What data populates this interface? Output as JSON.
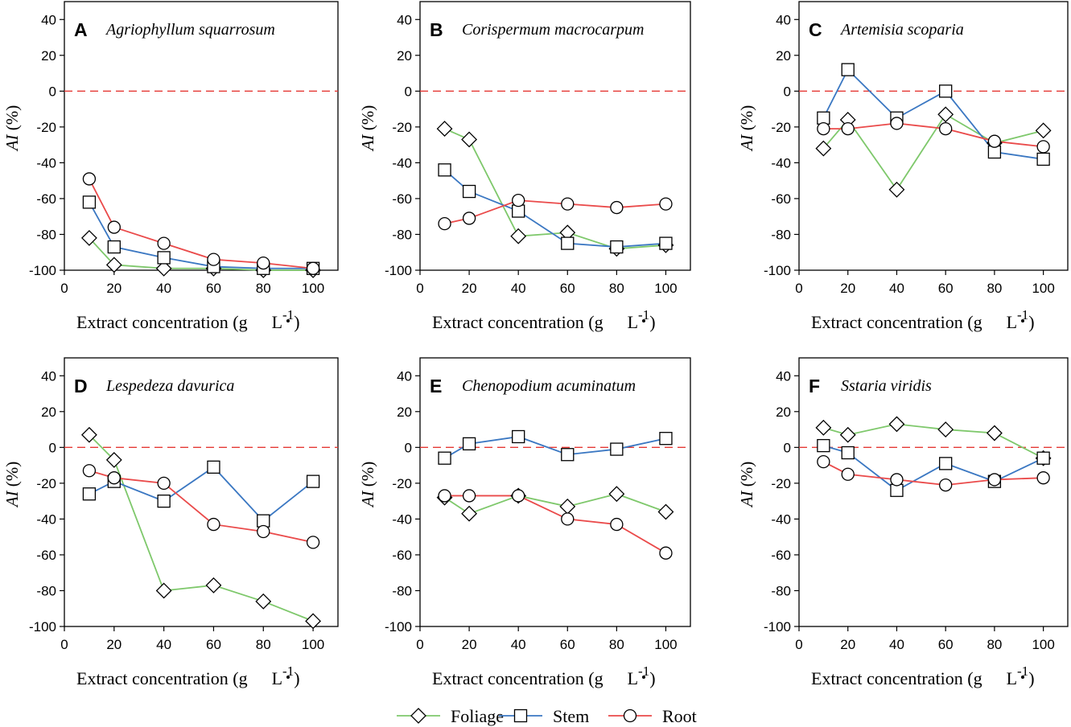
{
  "legend": {
    "items": [
      {
        "name": "Foliage",
        "color": "#7ec86b",
        "marker": "diamond-icon"
      },
      {
        "name": "Stem",
        "color": "#3a77c2",
        "marker": "square-icon"
      },
      {
        "name": "Root",
        "color": "#ea4a4a",
        "marker": "circle-icon"
      }
    ]
  },
  "chart_data": [
    {
      "type": "line",
      "panel": "A",
      "title": "Agriophyllum squarrosum",
      "xlabel": "Extract  concentration (g",
      "xlabel_unit": "L",
      "xlabel_exp": "-1",
      "ylabel_italic": "AI",
      "ylabel_rest": " (%)",
      "xlim": [
        0,
        110
      ],
      "ylim": [
        -100,
        50
      ],
      "xticks": [
        0,
        20,
        40,
        60,
        80,
        100
      ],
      "yticks": [
        -100,
        -80,
        -60,
        -40,
        -20,
        0,
        20,
        40
      ],
      "reference_line": 0,
      "x": [
        10,
        20,
        40,
        60,
        80,
        100
      ],
      "series": [
        {
          "name": "Foliage",
          "values": [
            -82,
            -97,
            -99,
            -99,
            -100,
            -100
          ]
        },
        {
          "name": "Stem",
          "values": [
            -62,
            -87,
            -93,
            -98,
            -99,
            -99
          ]
        },
        {
          "name": "Root",
          "values": [
            -49,
            -76,
            -85,
            -94,
            -96,
            -99
          ]
        }
      ]
    },
    {
      "type": "line",
      "panel": "B",
      "title": "Corispermum macrocarpum",
      "xlabel": "Extract  concentration (g",
      "xlabel_unit": "L",
      "xlabel_exp": "-1",
      "ylabel_italic": "AI",
      "ylabel_rest": " (%)",
      "xlim": [
        0,
        110
      ],
      "ylim": [
        -100,
        50
      ],
      "xticks": [
        0,
        20,
        40,
        60,
        80,
        100
      ],
      "yticks": [
        -100,
        -80,
        -60,
        -40,
        -20,
        0,
        20,
        40
      ],
      "reference_line": 0,
      "x": [
        10,
        20,
        40,
        60,
        80,
        100
      ],
      "series": [
        {
          "name": "Foliage",
          "values": [
            -21,
            -27,
            -81,
            -79,
            -88,
            -86
          ]
        },
        {
          "name": "Stem",
          "values": [
            -44,
            -56,
            -67,
            -85,
            -87,
            -85
          ]
        },
        {
          "name": "Root",
          "values": [
            -74,
            -71,
            -61,
            -63,
            -65,
            -63
          ]
        }
      ]
    },
    {
      "type": "line",
      "panel": "C",
      "title": "Artemisia scoparia",
      "xlabel": "Extract  concentration (g",
      "xlabel_unit": "L",
      "xlabel_exp": "-1",
      "ylabel_italic": "AI",
      "ylabel_rest": " (%)",
      "xlim": [
        0,
        110
      ],
      "ylim": [
        -100,
        50
      ],
      "xticks": [
        0,
        20,
        40,
        60,
        80,
        100
      ],
      "yticks": [
        -100,
        -80,
        -60,
        -40,
        -20,
        0,
        20,
        40
      ],
      "reference_line": 0,
      "x": [
        10,
        20,
        40,
        60,
        80,
        100
      ],
      "series": [
        {
          "name": "Foliage",
          "values": [
            -32,
            -16,
            -55,
            -13,
            -29,
            -22
          ]
        },
        {
          "name": "Stem",
          "values": [
            -15,
            12,
            -15,
            0,
            -34,
            -38
          ]
        },
        {
          "name": "Root",
          "values": [
            -21,
            -21,
            -18,
            -21,
            -28,
            -31
          ]
        }
      ]
    },
    {
      "type": "line",
      "panel": "D",
      "title": "Lespedeza davurica",
      "xlabel": "Extract  concentration (g",
      "xlabel_unit": "L",
      "xlabel_exp": "-1",
      "ylabel_italic": "AI",
      "ylabel_rest": " (%)",
      "xlim": [
        0,
        110
      ],
      "ylim": [
        -100,
        50
      ],
      "xticks": [
        0,
        20,
        40,
        60,
        80,
        100
      ],
      "yticks": [
        -100,
        -80,
        -60,
        -40,
        -20,
        0,
        20,
        40
      ],
      "reference_line": 0,
      "x": [
        10,
        20,
        40,
        60,
        80,
        100
      ],
      "series": [
        {
          "name": "Foliage",
          "values": [
            7,
            -7,
            -80,
            -77,
            -86,
            -97
          ]
        },
        {
          "name": "Stem",
          "values": [
            -26,
            -19,
            -30,
            -11,
            -41,
            -19
          ]
        },
        {
          "name": "Root",
          "values": [
            -13,
            -17,
            -20,
            -43,
            -47,
            -53
          ]
        }
      ]
    },
    {
      "type": "line",
      "panel": "E",
      "title": "Chenopodium acuminatum",
      "xlabel": "Extract  concentration (g",
      "xlabel_unit": "L",
      "xlabel_exp": "-1",
      "ylabel_italic": "AI",
      "ylabel_rest": " (%)",
      "xlim": [
        0,
        110
      ],
      "ylim": [
        -100,
        50
      ],
      "xticks": [
        0,
        20,
        40,
        60,
        80,
        100
      ],
      "yticks": [
        -100,
        -80,
        -60,
        -40,
        -20,
        0,
        20,
        40
      ],
      "reference_line": 0,
      "x": [
        10,
        20,
        40,
        60,
        80,
        100
      ],
      "series": [
        {
          "name": "Foliage",
          "values": [
            -28,
            -37,
            -27,
            -33,
            -26,
            -36
          ]
        },
        {
          "name": "Stem",
          "values": [
            -6,
            2,
            6,
            -4,
            -1,
            5
          ]
        },
        {
          "name": "Root",
          "values": [
            -27,
            -27,
            -27,
            -40,
            -43,
            -59
          ]
        }
      ]
    },
    {
      "type": "line",
      "panel": "F",
      "title": "Sstaria viridis",
      "xlabel": "Extract  concentration (g",
      "xlabel_unit": "L",
      "xlabel_exp": "-1",
      "ylabel_italic": "AI",
      "ylabel_rest": " (%)",
      "xlim": [
        0,
        110
      ],
      "ylim": [
        -100,
        50
      ],
      "xticks": [
        0,
        20,
        40,
        60,
        80,
        100
      ],
      "yticks": [
        -100,
        -80,
        -60,
        -40,
        -20,
        0,
        20,
        40
      ],
      "reference_line": 0,
      "x": [
        10,
        20,
        40,
        60,
        80,
        100
      ],
      "series": [
        {
          "name": "Foliage",
          "values": [
            11,
            7,
            13,
            10,
            8,
            -6
          ]
        },
        {
          "name": "Stem",
          "values": [
            1,
            -3,
            -24,
            -9,
            -19,
            -6
          ]
        },
        {
          "name": "Root",
          "values": [
            -8,
            -15,
            -18,
            -21,
            -18,
            -17
          ]
        }
      ]
    }
  ]
}
